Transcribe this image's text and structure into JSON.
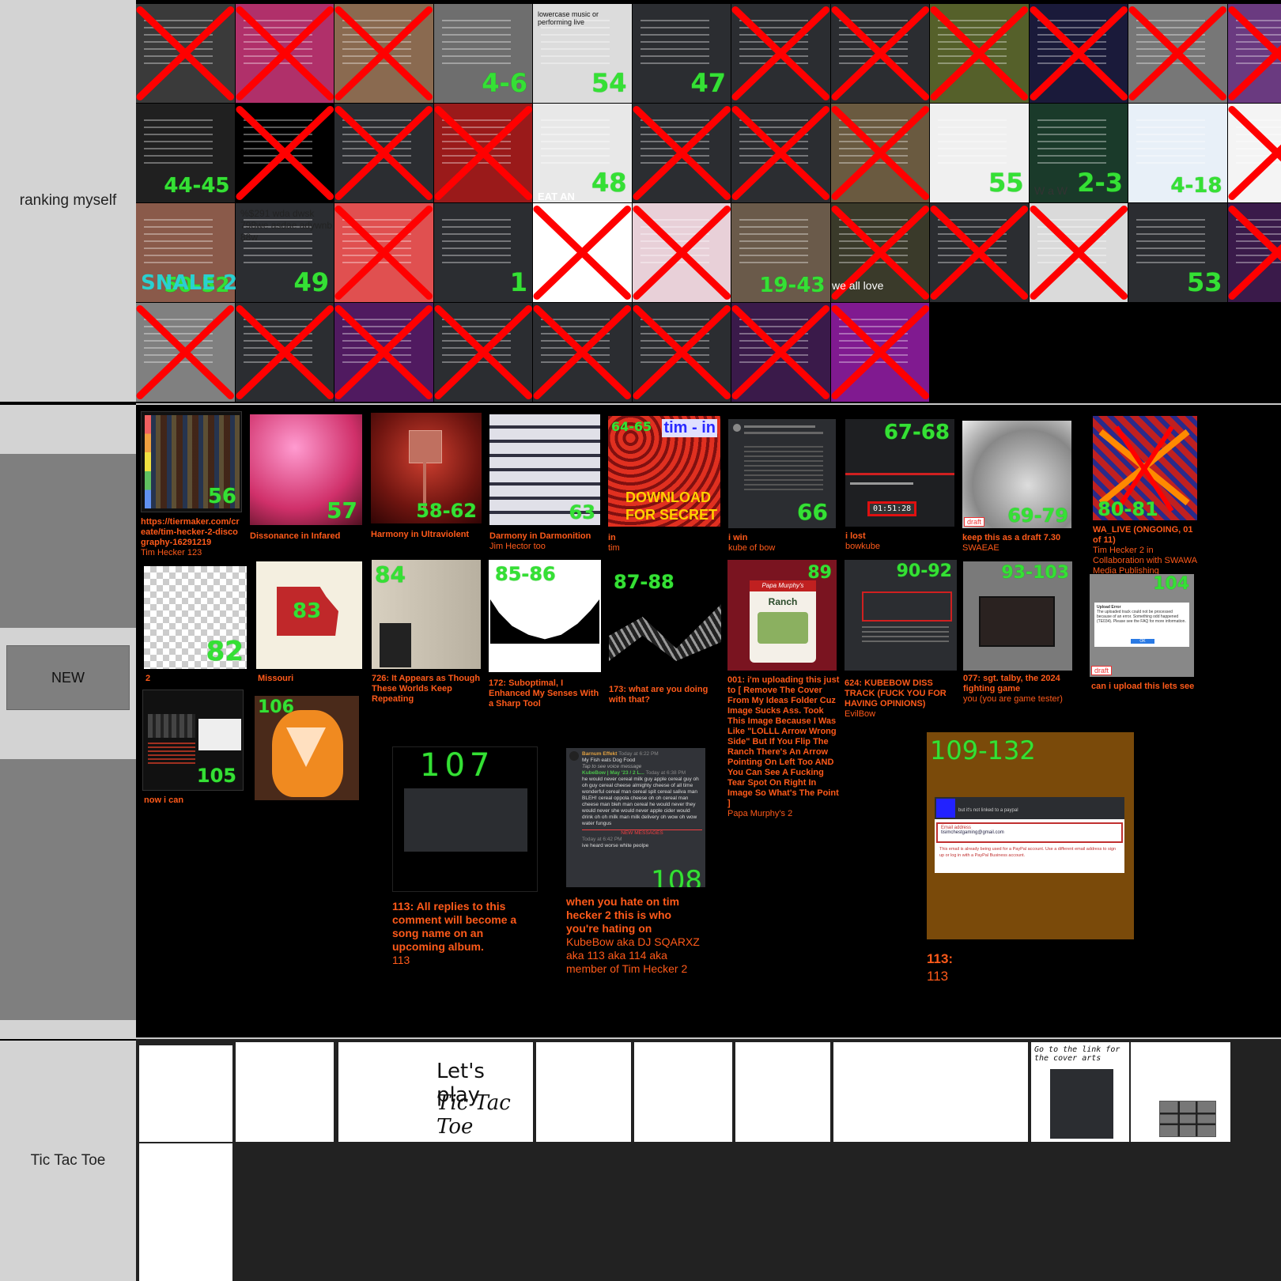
{
  "tiers": {
    "ranking": "ranking myself",
    "new": "NEW",
    "tictactoe": "Tic Tac Toe"
  },
  "colors": {
    "label_bg": "#d3d3d3",
    "cross": "#ff0000",
    "number": "#35e035",
    "caption": "#ff5a1a",
    "background": "#000000"
  },
  "ranking_cells": [
    {
      "num": "",
      "crossed": true,
      "bg": "#3a3a3a"
    },
    {
      "num": "",
      "crossed": true,
      "bg": "#b0306a"
    },
    {
      "num": "",
      "crossed": true,
      "bg": "#8a6a50"
    },
    {
      "num": "4-6",
      "crossed": false,
      "bg": "#6e6e6e"
    },
    {
      "num": "54",
      "crossed": false,
      "bg": "#dcdcdc"
    },
    {
      "num": "47",
      "crossed": false,
      "bg": "#2b2d31"
    },
    {
      "num": "",
      "crossed": true,
      "bg": "#2b2d31"
    },
    {
      "num": "",
      "crossed": true,
      "bg": "#2b2d31"
    },
    {
      "num": "",
      "crossed": true,
      "bg": "#55602a"
    },
    {
      "num": "",
      "crossed": true,
      "bg": "#1a1a3a"
    },
    {
      "num": "",
      "crossed": true,
      "bg": "#777777"
    },
    {
      "num": "",
      "crossed": true,
      "bg": "#6a3a80"
    },
    {
      "num": "44-45",
      "crossed": false,
      "bg": "#202020"
    },
    {
      "num": "",
      "crossed": true,
      "bg": "#000000"
    },
    {
      "num": "",
      "crossed": true,
      "bg": "#2b2d31"
    },
    {
      "num": "",
      "crossed": true,
      "bg": "#9a1a1a"
    },
    {
      "num": "48",
      "crossed": false,
      "bg": "#e8e8e8"
    },
    {
      "num": "",
      "crossed": true,
      "bg": "#2b2d31"
    },
    {
      "num": "",
      "crossed": true,
      "bg": "#2b2d31"
    },
    {
      "num": "",
      "crossed": true,
      "bg": "#6a5a40"
    },
    {
      "num": "55",
      "crossed": false,
      "bg": "#f0f0f0"
    },
    {
      "num": "2-3",
      "crossed": false,
      "bg": "#1a3a2a"
    },
    {
      "num": "4-18",
      "crossed": false,
      "bg": "#e8f0f8"
    },
    {
      "num": "",
      "crossed": true,
      "bg": "#f4f4f4"
    },
    {
      "num": "50-52",
      "crossed": false,
      "bg": "#8a5a4a"
    },
    {
      "num": "49",
      "crossed": false,
      "bg": "#2b2d31"
    },
    {
      "num": "",
      "crossed": true,
      "bg": "#e05050"
    },
    {
      "num": "1",
      "crossed": false,
      "bg": "#2b2d31"
    },
    {
      "num": "",
      "crossed": true,
      "bg": "#ffffff"
    },
    {
      "num": "",
      "crossed": true,
      "bg": "#e8d0d8"
    },
    {
      "num": "19-43",
      "crossed": false,
      "bg": "#6a5a4a"
    },
    {
      "num": "",
      "crossed": true,
      "bg": "#3a3a2a"
    },
    {
      "num": "",
      "crossed": true,
      "bg": "#2b2d31"
    },
    {
      "num": "",
      "crossed": true,
      "bg": "#dadada"
    },
    {
      "num": "53",
      "crossed": false,
      "bg": "#2b2d31"
    },
    {
      "num": "",
      "crossed": true,
      "bg": "#3a1a4a"
    },
    {
      "num": "",
      "crossed": true,
      "bg": "#808080"
    },
    {
      "num": "",
      "crossed": true,
      "bg": "#2b2d31"
    },
    {
      "num": "",
      "crossed": true,
      "bg": "#501a60"
    },
    {
      "num": "",
      "crossed": true,
      "bg": "#2b2d31"
    },
    {
      "num": "",
      "crossed": true,
      "bg": "#2b2d31"
    },
    {
      "num": "",
      "crossed": true,
      "bg": "#2b2d31"
    },
    {
      "num": "",
      "crossed": true,
      "bg": "#3a1a4a"
    },
    {
      "num": "",
      "crossed": true,
      "bg": "#801a90"
    }
  ],
  "ranking_texts": {
    "snail": "SNALE 2",
    "letters": "%$291 wda dwsk 798we asdae adywnb 88w",
    "lowercase": "lowercase music or performing live",
    "weallove": "we all love",
    "www": "W a W",
    "eatan": "EAT AN"
  },
  "new_items": [
    {
      "num": "56",
      "title": "https://tiermaker.com/create/tim-hecker-2-discography-16291219",
      "sub": "Tim Hecker 123"
    },
    {
      "num": "57",
      "title": "Dissonance in Infared",
      "sub": ""
    },
    {
      "num": "58-62",
      "title": "Harmony in Ultraviolent",
      "sub": ""
    },
    {
      "num": "63",
      "title": "Darmony in Darmonition",
      "sub": "Jim Hector too"
    },
    {
      "num": "64-65",
      "title": "in",
      "sub": "tim",
      "art_top": "tim - in",
      "art_bottom": "DOWNLOAD FOR SECRET"
    },
    {
      "num": "66",
      "title": "i win",
      "sub": "kube of bow"
    },
    {
      "num": "67-68",
      "title": "i lost",
      "sub": "bowkube",
      "timer": "01:51:28"
    },
    {
      "num": "69-79",
      "title": "keep this as a draft 7.30",
      "sub": "SWAEAE",
      "draft": "draft"
    },
    {
      "num": "80-81",
      "title": "WA_LIVE (ONGOING, 01 of 11)",
      "sub": "Tim Hecker 2 in Collaboration with SWAWA Media Publishing"
    },
    {
      "num": "82",
      "title": "2",
      "sub": ""
    },
    {
      "num": "83",
      "title": "Missouri",
      "sub": ""
    },
    {
      "num": "84",
      "title": "726: It Appears as Though These Worlds Keep Repeating",
      "sub": ""
    },
    {
      "num": "85-86",
      "title": "172: Suboptimal, I Enhanced My Senses With a Sharp Tool",
      "sub": ""
    },
    {
      "num": "87-88",
      "title": "173: what are you doing with that?",
      "sub": ""
    },
    {
      "num": "89",
      "title": "001: i'm uploading this just to [ Remove The Cover From My Ideas Folder Cuz Image Sucks Ass. Took This Image Because I Was Like \"LOLLL Arrow Wrong Side\" But If You Flip The Ranch There's An Arrow Pointing On Left Too AND You Can See A Fucking Tear Spot On Right In Image So What's The Point ]",
      "sub": "Papa Murphy's 2",
      "brand": "Papa Murphy's",
      "product": "Ranch"
    },
    {
      "num": "90-92",
      "title": "624: KUBEBOW DISS TRACK (FUCK YOU FOR HAVING OPINIONS)",
      "sub": "EvilBow"
    },
    {
      "num": "93-103",
      "title": "077: sgt. talby, the 2024 fighting game",
      "sub": "you (you are game tester)"
    },
    {
      "num": "104",
      "title": "can i upload this lets see",
      "sub": "",
      "draft": "draft"
    },
    {
      "num": "105",
      "title": "now i can",
      "sub": ""
    },
    {
      "num": "106",
      "title": "",
      "sub": ""
    },
    {
      "num": "107",
      "title": "113: All replies to this comment will become a song name on an upcoming album.",
      "sub": "113"
    },
    {
      "num": "108",
      "title": "when you hate on tim hecker 2 this is who you're hating on",
      "sub": "KubeBow aka DJ SQARXZ aka 113 aka 114 aka member of Tim Hecker 2"
    },
    {
      "num": "109-132",
      "title": "113:",
      "sub": "113"
    }
  ],
  "chat108": {
    "user1": "Barnum Effekt",
    "time1": "Today at 6:22 PM",
    "msg1": "My Fish eats Dog Food",
    "voice": "Tap to see voice message",
    "user2": "KubeBow | May '23 / 2 L...",
    "time2": "Today at 6:38 PM",
    "msg2": "he would never cereal milk guy apple cereal guy oh oh guy cereal cheese almighty cheese of all time wonderful cereal man cereal spit cereal saliva man BLEH! cereal oppola cheese oh oh cereal man cheese man bleh man cereal he would never they would never she would never apple cider would drink oh oh milk man milk delivery oh wow oh wow water fungus",
    "newmsg": "NEW MESSAGES",
    "time3": "Today at 6:42 PM",
    "msg3": "ive heard worse white peolpe"
  },
  "paypal": {
    "banner": "but it's not linked to a paypal",
    "label": "Email address",
    "email": "tisimchestgaming@gmail.com",
    "error": "This email is already being used for a PayPal account. Use a different email address to sign up or log in with a PayPal Business account."
  },
  "upload_error": {
    "title": "Upload Error",
    "body": "The uploaded track could not be processed because of an error. Something odd happened (TE034). Please see the FAQ for more information.",
    "ok": "OK"
  },
  "tictactoe_cells": {
    "title1": "Let's play",
    "title2": "Tic Tac Toe",
    "caption": "Go to the link for the cover arts"
  }
}
